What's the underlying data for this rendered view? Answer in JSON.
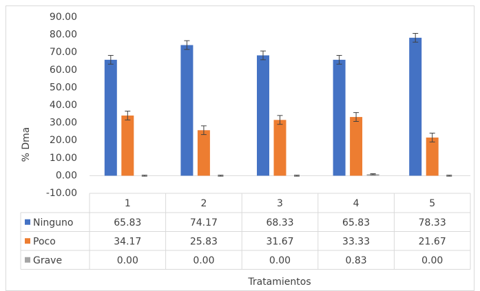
{
  "chart_data": {
    "type": "bar",
    "y_label": "% Dma",
    "x_label": "Tratamientos",
    "categories": [
      "1",
      "2",
      "3",
      "4",
      "5"
    ],
    "series": [
      {
        "name": "Ninguno",
        "color": "#4472c4",
        "values": [
          65.83,
          74.17,
          68.33,
          65.83,
          78.33
        ],
        "value_labels": [
          "65.83",
          "74.17",
          "68.33",
          "65.83",
          "78.33"
        ],
        "errors": [
          2.5,
          2.5,
          2.5,
          2.5,
          2.5
        ]
      },
      {
        "name": "Poco",
        "color": "#ed7d31",
        "values": [
          34.17,
          25.83,
          31.67,
          33.33,
          21.67
        ],
        "value_labels": [
          "34.17",
          "25.83",
          "31.67",
          "33.33",
          "21.67"
        ],
        "errors": [
          2.5,
          2.5,
          2.5,
          2.5,
          2.5
        ]
      },
      {
        "name": "Grave",
        "color": "#a5a5a5",
        "values": [
          0,
          0,
          0,
          0.83,
          0
        ],
        "value_labels": [
          "0.00",
          "0.00",
          "0.00",
          "0.83",
          "0.00"
        ],
        "errors": [
          0.3,
          0.3,
          0.3,
          0.3,
          0.3
        ]
      }
    ],
    "ylim": [
      -10,
      90
    ],
    "yticks": [
      {
        "value": -10,
        "label": "-10.00"
      },
      {
        "value": 0,
        "label": "0.00"
      },
      {
        "value": 10,
        "label": "10.00"
      },
      {
        "value": 20,
        "label": "20.00"
      },
      {
        "value": 30,
        "label": "30.00"
      },
      {
        "value": 40,
        "label": "40.00"
      },
      {
        "value": 50,
        "label": "50.00"
      },
      {
        "value": 60,
        "label": "60.00"
      },
      {
        "value": 70,
        "label": "70.00"
      },
      {
        "value": 80,
        "label": "80.00"
      },
      {
        "value": 90,
        "label": "90.00"
      }
    ],
    "grid": false
  }
}
